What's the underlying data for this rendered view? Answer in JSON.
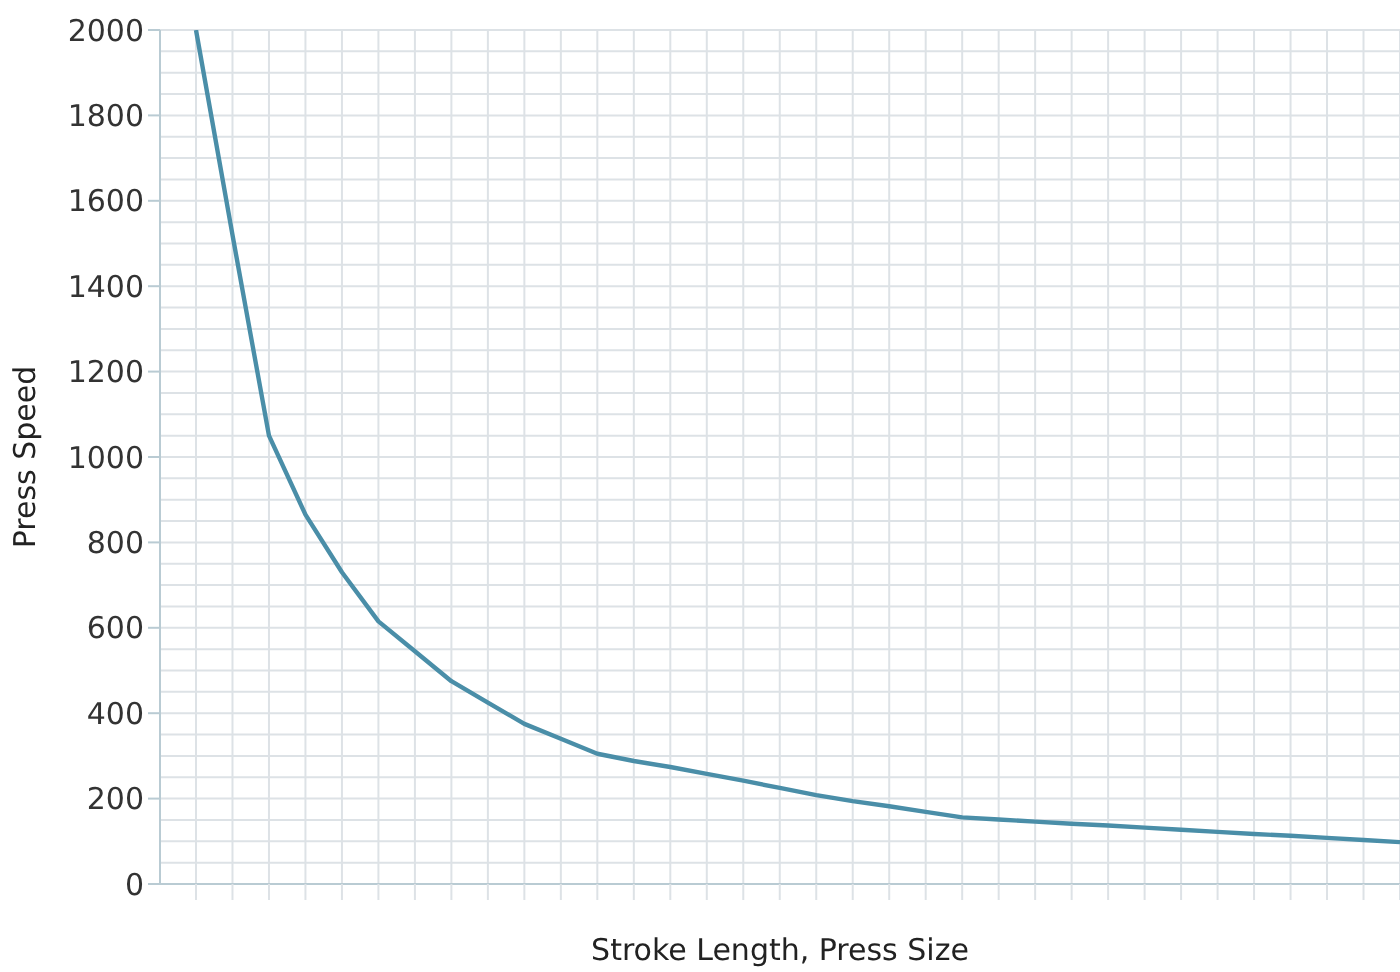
{
  "chart_data": {
    "type": "line",
    "xlabel": "Stroke Length, Press Size",
    "ylabel": "Press Speed",
    "categories": [
      null,
      null,
      null,
      null,
      null,
      null,
      null,
      null,
      null,
      null,
      null,
      null,
      null,
      null,
      null,
      null,
      null,
      null,
      null,
      null,
      null,
      null,
      null,
      null,
      null,
      null,
      null,
      null,
      null,
      null,
      null,
      null,
      null,
      null
    ],
    "series": [
      {
        "color": "#4a8ea8",
        "values": [
          2000,
          1520,
          1050,
          865,
          730,
          615,
          545,
          475,
          425,
          375,
          340,
          305,
          288,
          274,
          258,
          242,
          225,
          208,
          194,
          182,
          169,
          156,
          151,
          146,
          141,
          137,
          132,
          127,
          122,
          117,
          113,
          108,
          103,
          98
        ]
      }
    ],
    "ylim": [
      0,
      2000
    ],
    "yticks": [
      0,
      200,
      400,
      600,
      800,
      1000,
      1200,
      1400,
      1600,
      1800,
      2000
    ],
    "grid": true,
    "marker": "none",
    "tick_labels": "y"
  }
}
